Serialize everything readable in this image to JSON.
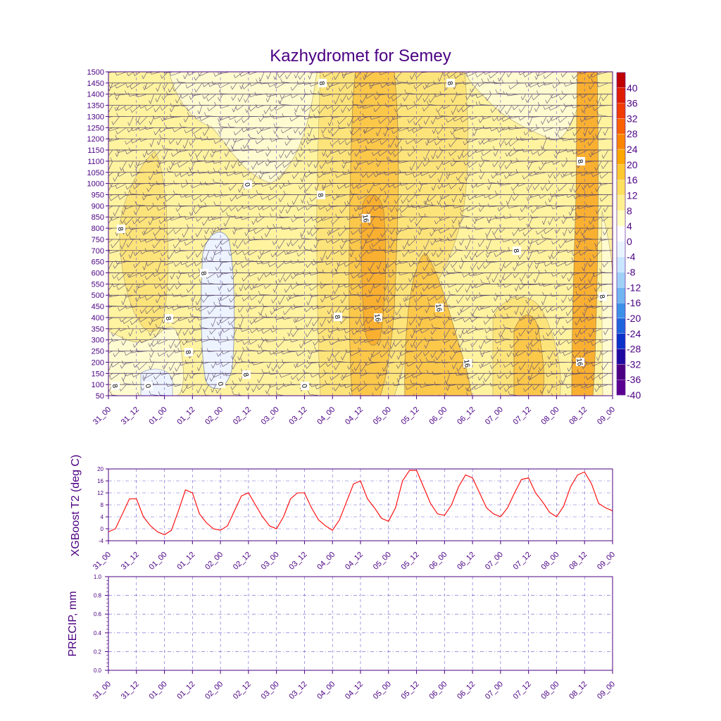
{
  "title": "Kazhydromet for Semey",
  "time_ticks": [
    "31_00",
    "31_12",
    "01_00",
    "01_12",
    "02_00",
    "02_12",
    "03_00",
    "03_12",
    "04_00",
    "04_12",
    "05_00",
    "05_12",
    "06_00",
    "06_12",
    "07_00",
    "07_12",
    "08_00",
    "08_12",
    "09_00"
  ],
  "colors": {
    "axis": "#4b0082",
    "line": "#ff0000",
    "grid": "#6a5acd",
    "title": "#4b0082"
  },
  "chart_data": [
    {
      "type": "heatmap",
      "description_type": "filled contour with wind barbs",
      "ylim": [
        50,
        1500
      ],
      "y_ticks": [
        1500,
        1450,
        1400,
        1350,
        1300,
        1250,
        1200,
        1150,
        1100,
        1050,
        1000,
        950,
        900,
        850,
        800,
        750,
        700,
        650,
        600,
        550,
        500,
        450,
        400,
        350,
        300,
        250,
        200,
        150,
        100,
        50
      ],
      "colorbar_labels": [
        "40",
        "36",
        "32",
        "28",
        "24",
        "20",
        "16",
        "12",
        "8",
        "4",
        "0",
        "-4",
        "-8",
        "-12",
        "-16",
        "-20",
        "-24",
        "-28",
        "-32",
        "-36",
        "-40"
      ],
      "colorbar_colors": [
        "#ffffff",
        "#c00000",
        "#e01c00",
        "#f03c00",
        "#f86000",
        "#fa8400",
        "#fca800",
        "#fdc830",
        "#fee060",
        "#fff090",
        "#ffffc0",
        "#ffffff",
        "#e8f4ff",
        "#c8e6ff",
        "#a0d0f8",
        "#70b4f0",
        "#3c90e8",
        "#1e64dc",
        "#0a32c8",
        "#1e0aa0",
        "#4b0082",
        "#5a0090"
      ],
      "contour_labels": [
        "8",
        "8",
        "8",
        "8",
        "0",
        "8",
        "8",
        "0",
        "0",
        "8",
        "8",
        "8",
        "8",
        "16",
        "16",
        "16",
        "16",
        "16",
        "8",
        "8",
        "8",
        "0"
      ]
    },
    {
      "type": "line",
      "ylabel": "XGBoost T2 (deg C)",
      "ylim": [
        -4,
        20
      ],
      "y_ticks": [
        "20",
        "16",
        "12",
        "8",
        "4",
        "0",
        "-4"
      ],
      "series": [
        {
          "values": [
            -1,
            0,
            5,
            10,
            10,
            4,
            1,
            -1,
            -2,
            -0.5,
            6,
            13,
            12,
            5,
            2,
            0,
            -0.5,
            1,
            6,
            11,
            12,
            8,
            4,
            1,
            0,
            4,
            10,
            12,
            12,
            7,
            3,
            1,
            -0.5,
            3,
            9,
            15,
            16,
            10,
            7,
            3.5,
            2.5,
            7,
            16,
            19.5,
            19.5,
            14,
            8.5,
            5,
            4.5,
            8,
            14,
            18,
            17,
            12,
            7,
            5,
            4,
            7,
            12,
            16.5,
            17,
            12,
            9,
            5.5,
            4,
            7.5,
            14,
            18,
            19,
            15,
            8.5,
            7,
            6
          ]
        }
      ]
    },
    {
      "type": "line",
      "ylabel": "PRECIP, mm",
      "ylim": [
        0,
        1
      ],
      "y_ticks": [
        "1.0",
        "0.8",
        "0.6",
        "0.4",
        "0.2",
        "0.0"
      ],
      "series": []
    }
  ]
}
